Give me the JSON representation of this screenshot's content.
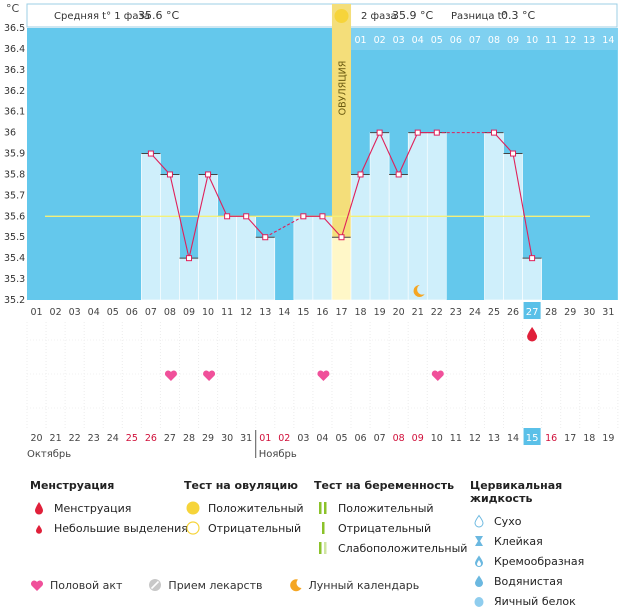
{
  "chart_data": {
    "type": "bbt-chart",
    "unit_label": "°C",
    "header": {
      "phase1_label": "Средняя t° 1 фаза",
      "phase1_value": "35.6 °C",
      "phase2_label": "2 фаза",
      "phase2_value": "35.9 °C",
      "diff_label": "Разница t°",
      "diff_value": "0.3 °C"
    },
    "y_ticks": [
      "36.5",
      "36.4",
      "36.3",
      "36.2",
      "36.1",
      "36",
      "35.9",
      "35.8",
      "35.7",
      "35.6",
      "35.5",
      "35.4",
      "35.3",
      "35.2"
    ],
    "y_range": [
      35.2,
      36.5
    ],
    "cycle_days": [
      "01",
      "02",
      "03",
      "04",
      "05",
      "06",
      "07",
      "08",
      "09",
      "10",
      "11",
      "12",
      "13",
      "14",
      "15",
      "16",
      "17",
      "18",
      "19",
      "20",
      "21",
      "22",
      "23",
      "24",
      "25",
      "26",
      "27",
      "28",
      "29",
      "30",
      "31"
    ],
    "highlighted_cycle_day": "27",
    "ovulation_label": "ОВУЛЯЦИЯ",
    "ovulation_index": 16,
    "phase2_day_labels": [
      "01",
      "02",
      "03",
      "04",
      "05",
      "06",
      "07",
      "08",
      "09",
      "10",
      "11",
      "12",
      "13",
      "14"
    ],
    "temperatures": [
      null,
      null,
      null,
      null,
      null,
      null,
      35.9,
      35.8,
      35.4,
      35.8,
      35.6,
      35.6,
      35.5,
      null,
      35.6,
      35.6,
      35.5,
      35.8,
      36.0,
      35.8,
      36.0,
      36.0,
      null,
      null,
      36.0,
      35.9,
      35.4,
      null,
      null,
      null,
      null
    ],
    "missing_connections": [
      [
        12,
        14
      ],
      [
        21,
        24
      ]
    ],
    "average_line": 35.6,
    "moon_index": 20,
    "menstruation_index": 26,
    "intercourse_indices": [
      7,
      9,
      15,
      21
    ],
    "date_days": [
      "20",
      "21",
      "22",
      "23",
      "24",
      "25",
      "26",
      "27",
      "28",
      "29",
      "30",
      "31",
      "01",
      "02",
      "03",
      "04",
      "05",
      "06",
      "07",
      "08",
      "09",
      "10",
      "11",
      "12",
      "13",
      "14",
      "15",
      "16",
      "17",
      "18",
      "19"
    ],
    "date_red_indices": [
      5,
      6,
      12,
      13,
      19,
      20,
      27
    ],
    "highlighted_date_index": 26,
    "month_labels": [
      "Октябрь",
      "Ноябрь"
    ],
    "month_start_index": 12
  },
  "legend": {
    "menstruation": {
      "title": "Менструация",
      "items": [
        "Менструация",
        "Небольшие выделения"
      ]
    },
    "ovulation_test": {
      "title": "Тест на овуляцию",
      "items": [
        "Положительный",
        "Отрицательный"
      ]
    },
    "pregnancy_test": {
      "title": "Тест на беременность",
      "items": [
        "Положительный",
        "Отрицательный",
        "Слабоположительный"
      ]
    },
    "cervical": {
      "title": "Цервикальная жидкость",
      "items": [
        "Сухо",
        "Клейкая",
        "Кремообразная",
        "Водянистая",
        "Яичный белок"
      ]
    },
    "bottom": [
      "Половой акт",
      "Прием лекарств",
      "Лунный календарь"
    ]
  },
  "colors": {
    "sky": "#64C8EC",
    "bar": "#CFEFFB",
    "ovulation": "#F4DE7A",
    "line": "#E0205A",
    "heart": "#F0509A",
    "avg": "#F4F07A",
    "red_text": "#D0103A"
  }
}
